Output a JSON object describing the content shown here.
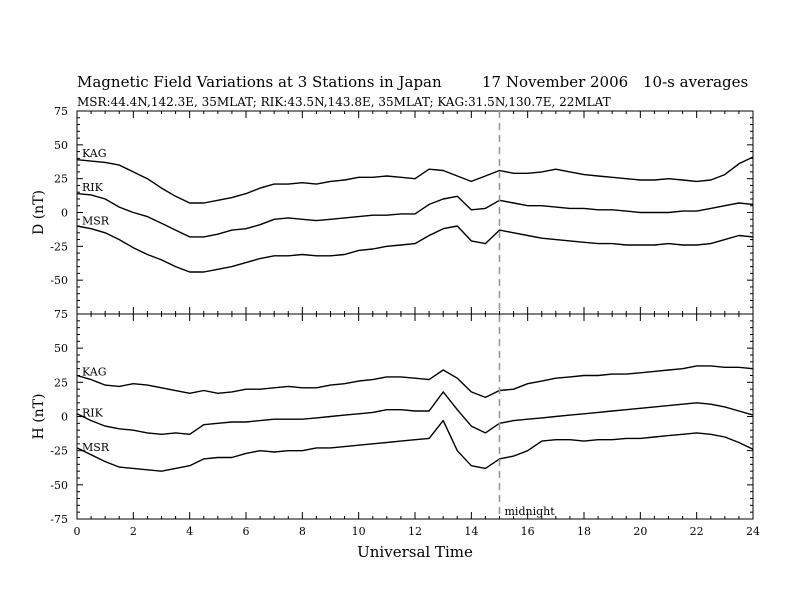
{
  "header": {
    "title": "Magnetic Field Variations at 3 Stations in Japan",
    "date": "17 November 2006",
    "averaging": "10-s averages",
    "stations_line": "MSR:44.4N,142.3E, 35MLAT;   RIK:43.5N,143.8E, 35MLAT;   KAG:31.5N,130.7E, 22MLAT"
  },
  "chart_data": [
    {
      "type": "line",
      "panel": "D",
      "ylabel": "D (nT)",
      "xlabel": "Universal Time",
      "xlim": [
        0,
        24
      ],
      "ylim": [
        -75,
        75
      ],
      "xticks": [
        0,
        2,
        4,
        6,
        8,
        10,
        12,
        14,
        16,
        18,
        20,
        22,
        24
      ],
      "yticks": [
        -75,
        -50,
        -25,
        0,
        25,
        50,
        75
      ],
      "grid": false,
      "x": [
        0,
        0.5,
        1,
        1.5,
        2,
        2.5,
        3,
        3.5,
        4,
        4.5,
        5,
        5.5,
        6,
        6.5,
        7,
        7.5,
        8,
        8.5,
        9,
        9.5,
        10,
        10.5,
        11,
        11.5,
        12,
        12.5,
        13,
        13.5,
        14,
        14.5,
        15,
        15.5,
        16,
        16.5,
        17,
        17.5,
        18,
        18.5,
        19,
        19.5,
        20,
        20.5,
        21,
        21.5,
        22,
        22.5,
        23,
        23.5,
        24
      ],
      "series": [
        {
          "name": "KAG",
          "values": [
            39,
            38,
            37,
            35,
            30,
            25,
            18,
            12,
            7,
            7,
            9,
            11,
            14,
            18,
            21,
            21,
            22,
            21,
            23,
            24,
            26,
            26,
            27,
            26,
            25,
            32,
            31,
            27,
            23,
            27,
            31,
            29,
            29,
            30,
            32,
            30,
            28,
            27,
            26,
            25,
            24,
            24,
            25,
            24,
            23,
            24,
            28,
            36,
            41
          ]
        },
        {
          "name": "RIK",
          "values": [
            14,
            13,
            10,
            4,
            0,
            -3,
            -8,
            -13,
            -18,
            -18,
            -16,
            -13,
            -12,
            -9,
            -5,
            -4,
            -5,
            -6,
            -5,
            -4,
            -3,
            -2,
            -2,
            -1,
            -1,
            6,
            10,
            12,
            2,
            3,
            9,
            7,
            5,
            5,
            4,
            3,
            3,
            2,
            2,
            1,
            0,
            0,
            0,
            1,
            1,
            3,
            5,
            7,
            6
          ]
        },
        {
          "name": "MSR",
          "values": [
            -10,
            -12,
            -15,
            -20,
            -26,
            -31,
            -35,
            -40,
            -44,
            -44,
            -42,
            -40,
            -37,
            -34,
            -32,
            -32,
            -31,
            -32,
            -32,
            -31,
            -28,
            -27,
            -25,
            -24,
            -23,
            -17,
            -12,
            -10,
            -21,
            -23,
            -13,
            -15,
            -17,
            -19,
            -20,
            -21,
            -22,
            -23,
            -23,
            -24,
            -24,
            -24,
            -23,
            -24,
            -24,
            -23,
            -20,
            -17,
            -18
          ]
        }
      ]
    },
    {
      "type": "line",
      "panel": "H",
      "ylabel": "H (nT)",
      "xlabel": "Universal Time",
      "xlim": [
        0,
        24
      ],
      "ylim": [
        -75,
        75
      ],
      "xticks": [
        0,
        2,
        4,
        6,
        8,
        10,
        12,
        14,
        16,
        18,
        20,
        22,
        24
      ],
      "yticks": [
        -75,
        -50,
        -25,
        0,
        25,
        50,
        75
      ],
      "grid": false,
      "x": [
        0,
        0.5,
        1,
        1.5,
        2,
        2.5,
        3,
        3.5,
        4,
        4.5,
        5,
        5.5,
        6,
        6.5,
        7,
        7.5,
        8,
        8.5,
        9,
        9.5,
        10,
        10.5,
        11,
        11.5,
        12,
        12.5,
        13,
        13.5,
        14,
        14.5,
        15,
        15.5,
        16,
        16.5,
        17,
        17.5,
        18,
        18.5,
        19,
        19.5,
        20,
        20.5,
        21,
        21.5,
        22,
        22.5,
        23,
        23.5,
        24
      ],
      "series": [
        {
          "name": "KAG",
          "values": [
            30,
            27,
            23,
            22,
            24,
            23,
            21,
            19,
            17,
            19,
            17,
            18,
            20,
            20,
            21,
            22,
            21,
            21,
            23,
            24,
            26,
            27,
            29,
            29,
            28,
            27,
            34,
            28,
            18,
            14,
            19,
            20,
            24,
            26,
            28,
            29,
            30,
            30,
            31,
            31,
            32,
            33,
            34,
            35,
            37,
            37,
            36,
            36,
            35
          ]
        },
        {
          "name": "RIK",
          "values": [
            2,
            -3,
            -7,
            -9,
            -10,
            -12,
            -13,
            -12,
            -13,
            -6,
            -5,
            -4,
            -4,
            -3,
            -2,
            -2,
            -2,
            -1,
            0,
            1,
            2,
            3,
            5,
            5,
            4,
            4,
            18,
            5,
            -7,
            -12,
            -5,
            -3,
            -2,
            -1,
            0,
            1,
            2,
            3,
            4,
            5,
            6,
            7,
            8,
            9,
            10,
            9,
            7,
            4,
            1
          ]
        },
        {
          "name": "MSR",
          "values": [
            -23,
            -28,
            -33,
            -37,
            -38,
            -39,
            -40,
            -38,
            -36,
            -31,
            -30,
            -30,
            -27,
            -25,
            -26,
            -25,
            -25,
            -23,
            -23,
            -22,
            -21,
            -20,
            -19,
            -18,
            -17,
            -16,
            -3,
            -25,
            -36,
            -38,
            -31,
            -29,
            -25,
            -18,
            -17,
            -17,
            -18,
            -17,
            -17,
            -16,
            -16,
            -15,
            -14,
            -13,
            -12,
            -13,
            -15,
            -19,
            -24
          ]
        }
      ]
    }
  ],
  "annotation": {
    "label": "midnight",
    "x": 15
  }
}
